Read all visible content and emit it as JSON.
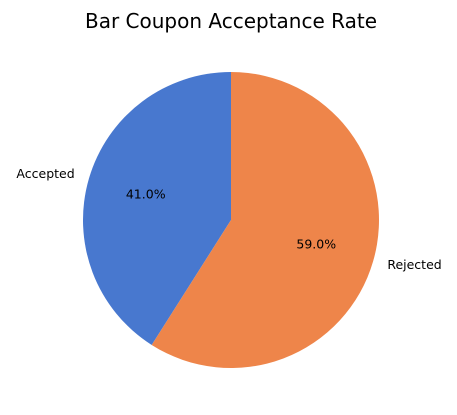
{
  "chart_data": {
    "type": "pie",
    "title": "Bar Coupon Acceptance Rate",
    "labels": [
      "Accepted",
      "Rejected"
    ],
    "values": [
      41.0,
      59.0
    ],
    "percent_labels": [
      "41.0%",
      "59.0%"
    ],
    "colors": [
      "#4878cf",
      "#ee854a"
    ],
    "start_angle_deg": 90,
    "direction": "counterclockwise",
    "legend": "none"
  }
}
